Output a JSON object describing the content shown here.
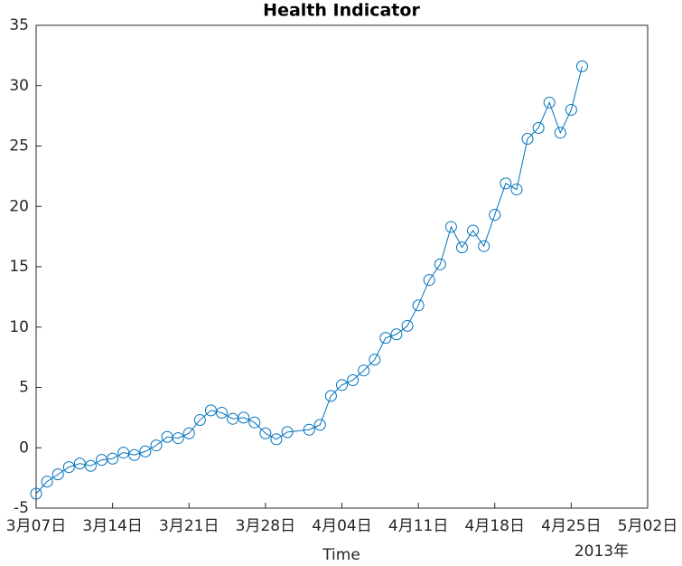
{
  "chart_data": {
    "type": "line",
    "title": "Health Indicator",
    "x_label": "Time",
    "x_secondary_label": "2013年",
    "x": [
      "2013-03-07",
      "2013-03-08",
      "2013-03-09",
      "2013-03-10",
      "2013-03-11",
      "2013-03-12",
      "2013-03-13",
      "2013-03-14",
      "2013-03-15",
      "2013-03-16",
      "2013-03-17",
      "2013-03-18",
      "2013-03-19",
      "2013-03-20",
      "2013-03-21",
      "2013-03-22",
      "2013-03-23",
      "2013-03-24",
      "2013-03-25",
      "2013-03-26",
      "2013-03-27",
      "2013-03-28",
      "2013-03-29",
      "2013-03-30",
      "2013-04-01",
      "2013-04-02",
      "2013-04-03",
      "2013-04-04",
      "2013-04-05",
      "2013-04-06",
      "2013-04-07",
      "2013-04-08",
      "2013-04-09",
      "2013-04-10",
      "2013-04-11",
      "2013-04-12",
      "2013-04-13",
      "2013-04-14",
      "2013-04-15",
      "2013-04-16",
      "2013-04-17",
      "2013-04-18",
      "2013-04-19",
      "2013-04-20",
      "2013-04-21",
      "2013-04-22",
      "2013-04-23",
      "2013-04-24",
      "2013-04-25",
      "2013-04-26"
    ],
    "series": [
      {
        "name": "Health Indicator",
        "color": "#0072bd",
        "values": [
          -3.8,
          -2.8,
          -2.2,
          -1.6,
          -1.3,
          -1.5,
          -1.0,
          -0.9,
          -0.4,
          -0.6,
          -0.3,
          0.2,
          0.9,
          0.8,
          1.2,
          2.3,
          3.1,
          2.9,
          2.4,
          2.5,
          2.1,
          1.2,
          0.7,
          1.3,
          1.5,
          1.9,
          4.3,
          5.2,
          5.6,
          6.4,
          7.3,
          9.1,
          9.4,
          10.1,
          11.8,
          13.9,
          15.2,
          18.3,
          16.6,
          18.0,
          16.7,
          19.3,
          21.9,
          21.4,
          25.6,
          26.5,
          28.6,
          26.1,
          28.0,
          31.6
        ]
      }
    ],
    "xlim": [
      "2013-03-07",
      "2013-05-02"
    ],
    "xticks": [
      {
        "value": "2013-03-07",
        "label": "3月07日"
      },
      {
        "value": "2013-03-14",
        "label": "3月14日"
      },
      {
        "value": "2013-03-21",
        "label": "3月21日"
      },
      {
        "value": "2013-03-28",
        "label": "3月28日"
      },
      {
        "value": "2013-04-04",
        "label": "4月04日"
      },
      {
        "value": "2013-04-11",
        "label": "4月11日"
      },
      {
        "value": "2013-04-18",
        "label": "4月18日"
      },
      {
        "value": "2013-04-25",
        "label": "4月25日"
      },
      {
        "value": "2013-05-02",
        "label": "5月02日"
      }
    ],
    "ylim": [
      -5,
      35
    ],
    "yticks": [
      -5,
      0,
      5,
      10,
      15,
      20,
      25,
      30,
      35
    ],
    "grid": false
  }
}
